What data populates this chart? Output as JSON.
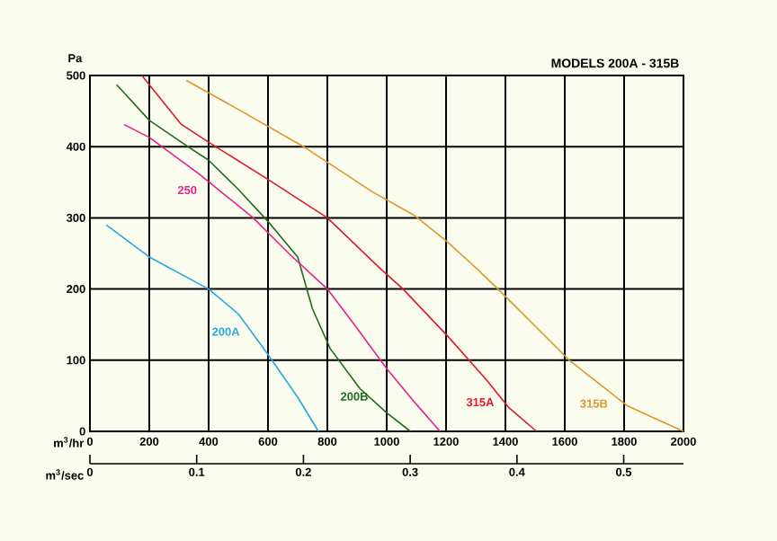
{
  "chart_data": {
    "type": "line",
    "title": "MODELS 200A - 315B",
    "xlabel": "m$^{3}$/hr",
    "ylabel": "Pa",
    "x2label": "m$^{3}$/sec",
    "xlim": [
      0,
      2000
    ],
    "ylim": [
      0,
      500
    ],
    "xticks": [
      0,
      200,
      400,
      600,
      800,
      1000,
      1200,
      1400,
      1600,
      1800,
      2000
    ],
    "yticks": [
      0,
      100,
      200,
      300,
      400,
      500
    ],
    "x2lim": [
      0,
      0.556
    ],
    "x2ticks": [
      0,
      0.1,
      0.2,
      0.3,
      0.4,
      0.5
    ],
    "grid": true,
    "legend": false,
    "marker": "none",
    "line_style": "solid",
    "series": [
      {
        "name": "200A",
        "color": "#2aa7e0",
        "x": [
          55,
          200,
          400,
          500,
          600,
          700,
          770
        ],
        "values": [
          290,
          245,
          200,
          165,
          108,
          48,
          0
        ]
      },
      {
        "name": "200B",
        "color": "#1e6b1e",
        "x": [
          90,
          200,
          330,
          400,
          500,
          600,
          700,
          750,
          810,
          910,
          1000,
          1080
        ],
        "values": [
          487,
          437,
          400,
          381,
          340,
          295,
          245,
          172,
          116,
          60,
          26,
          0
        ]
      },
      {
        "name": "250",
        "color": "#e8208c",
        "x": [
          115,
          200,
          367,
          550,
          670,
          800,
          900,
          1000,
          1100,
          1180
        ],
        "values": [
          431,
          413,
          362,
          300,
          250,
          200,
          145,
          88,
          38,
          0
        ]
      },
      {
        "name": "315A",
        "color": "#e0182d",
        "x": [
          175,
          306,
          397,
          600,
          800,
          980,
          1055,
          1205,
          1335,
          1410,
          1505
        ],
        "values": [
          500,
          432,
          407,
          354,
          300,
          228,
          200,
          134,
          73,
          34,
          0
        ]
      },
      {
        "name": "315B",
        "color": "#e0962a",
        "x": [
          325,
          510,
          720,
          950,
          1095,
          1205,
          1305,
          1375,
          1615,
          1810,
          2000
        ],
        "values": [
          493,
          450,
          400,
          337,
          303,
          266,
          228,
          200,
          100,
          36,
          0
        ]
      }
    ]
  }
}
